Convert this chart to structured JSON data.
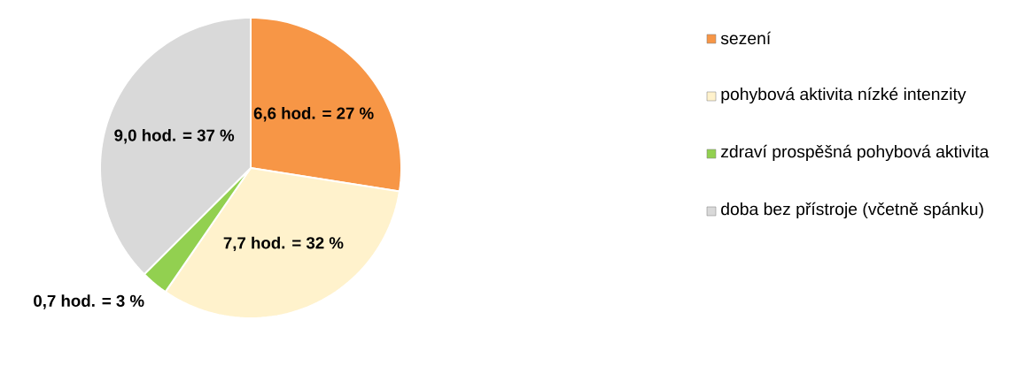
{
  "chart_data": {
    "type": "pie",
    "categories": [
      "sezení",
      "pohybová aktivita nízké intenzity",
      "zdraví prospěšná pohybová aktivita",
      "doba bez přístroje (včetně spánku)"
    ],
    "values": [
      6.6,
      7.7,
      0.7,
      9.0
    ],
    "value_labels": [
      "6,6 hod. = 27 %",
      "7,7 hod. = 32 %",
      "0,7 hod. = 3 %",
      "9,0 hod. = 37 %"
    ],
    "colors": [
      "#f79646",
      "#fff2cc",
      "#92d050",
      "#d9d9d9"
    ],
    "legend": "right"
  }
}
